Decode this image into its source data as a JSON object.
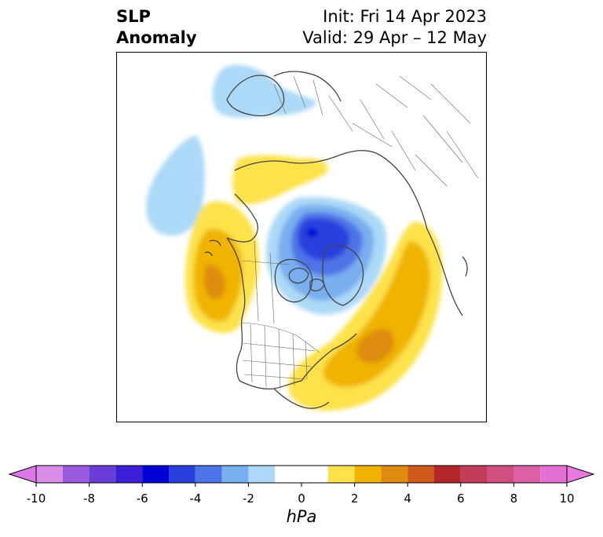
{
  "title": {
    "line1_left": "SLP",
    "line2_left": "Anomaly",
    "line1_right": "Init: Fri 14 Apr 2023",
    "line2_right": "Valid: 29 Apr – 12 May"
  },
  "map": {
    "projection": "north-polar-stereographic",
    "field": "sea level pressure anomaly",
    "features": [
      "coastlines",
      "country-borders",
      "us-state-borders"
    ],
    "anomaly_centers": [
      {
        "region": "Arctic Ocean / Canadian Archipelago",
        "sign": "negative",
        "peak_hpa": -6
      },
      {
        "region": "Northeast Pacific off British Columbia",
        "sign": "positive",
        "peak_hpa": 3
      },
      {
        "region": "Western Atlantic off US East Coast",
        "sign": "positive",
        "peak_hpa": 3
      },
      {
        "region": "Northern Europe / Scandinavia",
        "sign": "negative",
        "peak_hpa": -1
      },
      {
        "region": "North Pacific / Aleutians",
        "sign": "negative",
        "peak_hpa": -1
      },
      {
        "region": "Northern Siberia",
        "sign": "positive",
        "peak_hpa": 1
      }
    ]
  },
  "colorbar": {
    "unit_label": "hPa",
    "extend": "both",
    "levels": [
      -10,
      -9,
      -8,
      -7,
      -6,
      -5,
      -4,
      -3,
      -2,
      -1,
      1,
      2,
      3,
      4,
      5,
      6,
      7,
      8,
      9,
      10
    ],
    "tick_labels": [
      "-10",
      "-8",
      "-6",
      "-4",
      "-2",
      "0",
      "2",
      "4",
      "6",
      "8",
      "10"
    ],
    "bins": [
      {
        "from": -10,
        "to": -9,
        "color": "#d98ce8"
      },
      {
        "from": -9,
        "to": -8,
        "color": "#9b59dc"
      },
      {
        "from": -8,
        "to": -7,
        "color": "#6a3dd8"
      },
      {
        "from": -7,
        "to": -6,
        "color": "#3a1fd6"
      },
      {
        "from": -6,
        "to": -5,
        "color": "#0000d6"
      },
      {
        "from": -5,
        "to": -4,
        "color": "#2a40de"
      },
      {
        "from": -4,
        "to": -3,
        "color": "#4d73e6"
      },
      {
        "from": -3,
        "to": -2,
        "color": "#79aeef"
      },
      {
        "from": -2,
        "to": -1,
        "color": "#acd9f7"
      },
      {
        "from": -1,
        "to": 1,
        "color": "#ffffff"
      },
      {
        "from": 1,
        "to": 2,
        "color": "#fde24c"
      },
      {
        "from": 2,
        "to": 3,
        "color": "#f0b400"
      },
      {
        "from": 3,
        "to": 4,
        "color": "#de8c10"
      },
      {
        "from": 4,
        "to": 5,
        "color": "#cd5a1a"
      },
      {
        "from": 5,
        "to": 6,
        "color": "#b3262a"
      },
      {
        "from": 6,
        "to": 7,
        "color": "#c23c58"
      },
      {
        "from": 7,
        "to": 8,
        "color": "#d04e80"
      },
      {
        "from": 8,
        "to": 9,
        "color": "#dc60a6"
      },
      {
        "from": 9,
        "to": 10,
        "color": "#e570d4"
      }
    ],
    "under_color": "#da79e6",
    "over_color": "#e879df"
  }
}
